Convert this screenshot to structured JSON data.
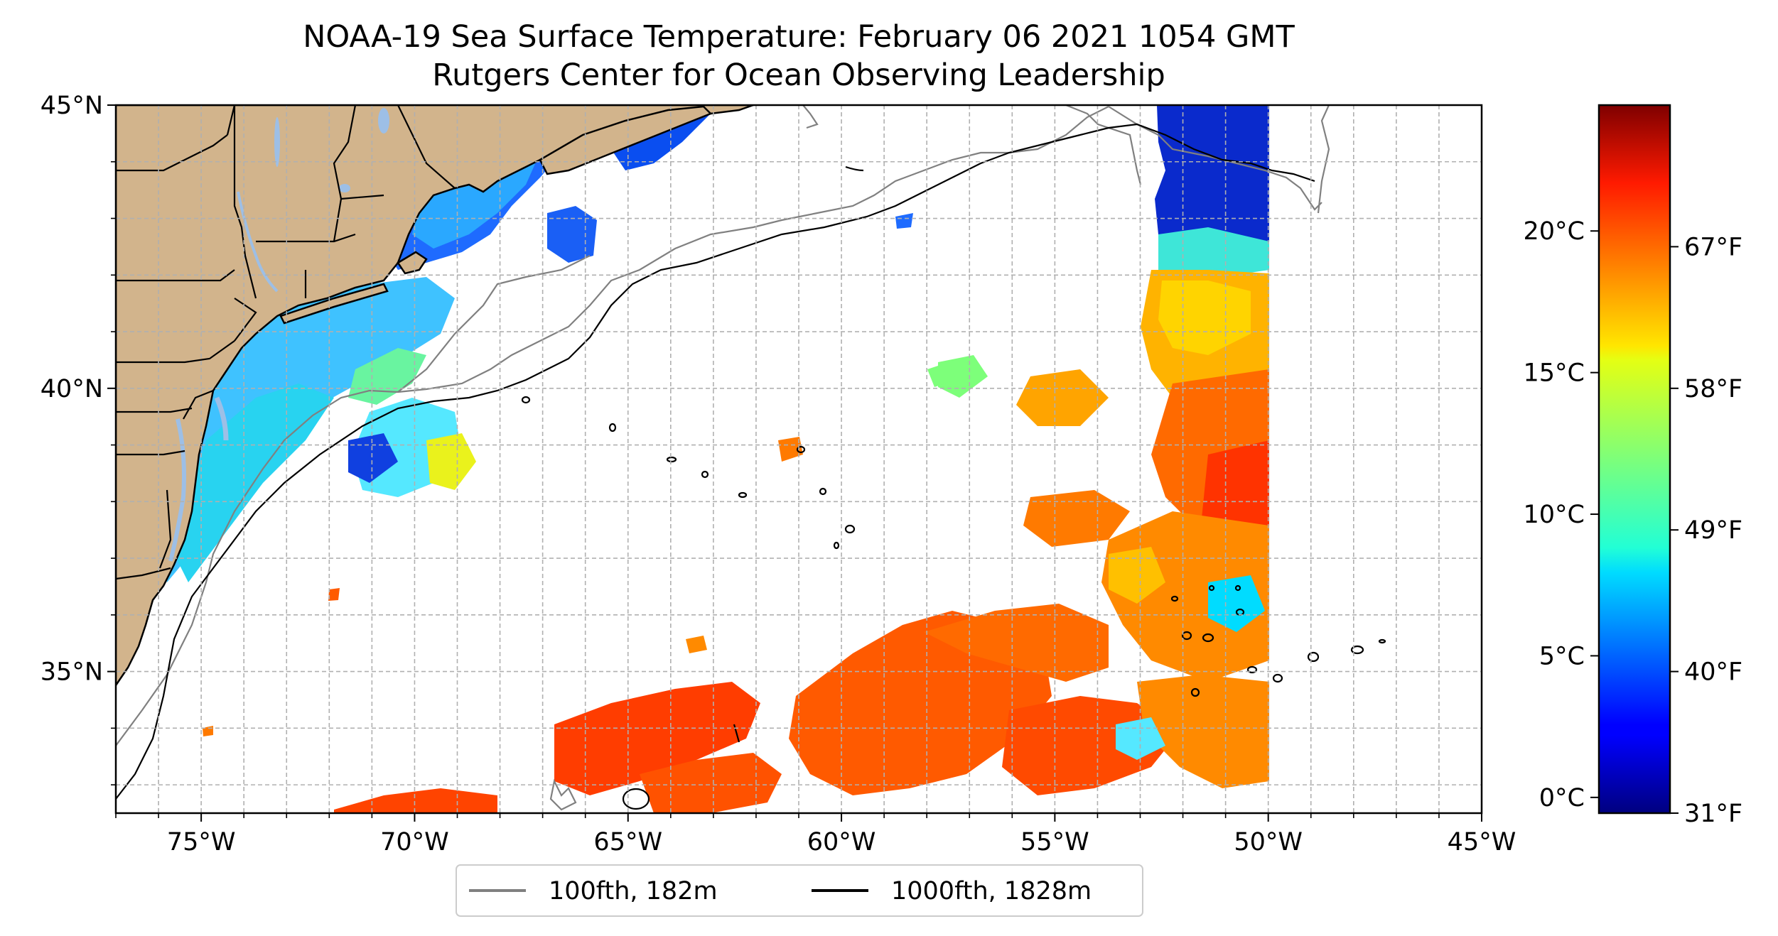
{
  "title": {
    "line1": "NOAA-19 Sea Surface Temperature: February 06 2021 1054 GMT",
    "line2": "Rutgers Center for Ocean Observing Leadership"
  },
  "map": {
    "lon_range": [
      -77,
      -45
    ],
    "lat_range": [
      32.5,
      45
    ],
    "lat_ticks": [
      {
        "value": 45,
        "label": "45°N"
      },
      {
        "value": 40,
        "label": "40°N"
      },
      {
        "value": 35,
        "label": "35°N"
      }
    ],
    "lon_ticks": [
      {
        "value": -75,
        "label": "75°W"
      },
      {
        "value": -70,
        "label": "70°W"
      },
      {
        "value": -65,
        "label": "65°W"
      },
      {
        "value": -60,
        "label": "60°W"
      },
      {
        "value": -55,
        "label": "55°W"
      },
      {
        "value": -50,
        "label": "50°W"
      },
      {
        "value": -45,
        "label": "45°W"
      }
    ],
    "swath_east_edge_lon": -50,
    "land_color": "#d2b48c",
    "lake_color": "#9dbfe6"
  },
  "colorbar": {
    "celsius_ticks": [
      {
        "value": 0,
        "label": "0°C"
      },
      {
        "value": 5,
        "label": "5°C"
      },
      {
        "value": 10,
        "label": "10°C"
      },
      {
        "value": 15,
        "label": "15°C"
      },
      {
        "value": 20,
        "label": "20°C"
      }
    ],
    "fahrenheit_ticks": [
      {
        "value": 31,
        "label": "31°F"
      },
      {
        "value": 40,
        "label": "40°F"
      },
      {
        "value": 49,
        "label": "49°F"
      },
      {
        "value": 58,
        "label": "58°F"
      },
      {
        "value": 67,
        "label": "67°F"
      }
    ],
    "range_f": [
      31,
      76
    ],
    "colormap": "jet"
  },
  "legend": {
    "items": [
      {
        "label": "100fth, 182m",
        "color": "#808080"
      },
      {
        "label": "1000fth, 1828m",
        "color": "#000000"
      }
    ]
  }
}
